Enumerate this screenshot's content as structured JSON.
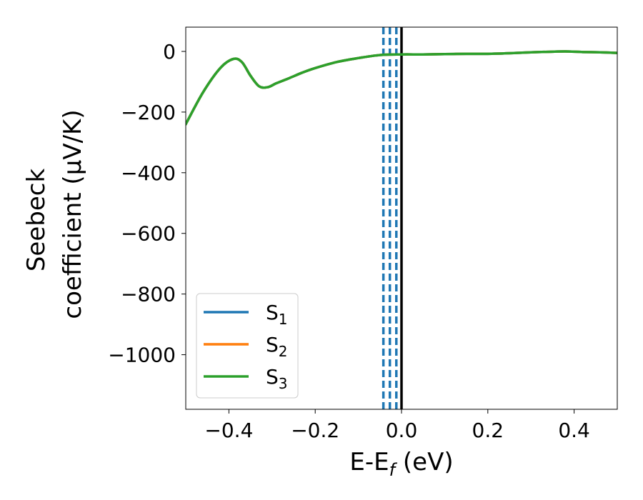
{
  "chart_data": {
    "type": "line",
    "xlabel": "E-E",
    "xlabel_sub": "f",
    "xlabel_unit": " (eV)",
    "ylabel_line1": "Seebeck",
    "ylabel_line2": "coefficient  (μV/K)",
    "xlim": [
      -0.5,
      0.5
    ],
    "ylim": [
      -1180,
      80
    ],
    "xticks": [
      -0.4,
      -0.2,
      0.0,
      0.2,
      0.4
    ],
    "xtick_labels": [
      "−0.4",
      "−0.2",
      "0.0",
      "0.2",
      "0.4"
    ],
    "yticks": [
      0,
      -200,
      -400,
      -600,
      -800,
      -1000
    ],
    "ytick_labels": [
      "0",
      "−200",
      "−400",
      "−600",
      "−800",
      "−1000"
    ],
    "grid": false,
    "legend_position": "bottom-left",
    "legend": [
      {
        "label": "S",
        "sub": "1",
        "color": "#1f77b4"
      },
      {
        "label": "S",
        "sub": "2",
        "color": "#ff7f0e"
      },
      {
        "label": "S",
        "sub": "3",
        "color": "#2ca02c"
      }
    ],
    "series": [
      {
        "name": "S1",
        "color": "#1f77b4",
        "x": [
          -0.5,
          -0.46,
          -0.42,
          -0.39,
          -0.37,
          -0.35,
          -0.33,
          -0.31,
          -0.29,
          -0.26,
          -0.23,
          -0.2,
          -0.15,
          -0.1,
          -0.05,
          0.0,
          0.05,
          0.1,
          0.15,
          0.2,
          0.25,
          0.3,
          0.35,
          0.38,
          0.42,
          0.46,
          0.5
        ],
        "y": [
          -240,
          -135,
          -55,
          -25,
          -35,
          -80,
          -115,
          -118,
          -105,
          -88,
          -70,
          -55,
          -35,
          -22,
          -12,
          -10,
          -10,
          -9,
          -8,
          -8,
          -6,
          -3,
          -1,
          0,
          -2,
          -3,
          -5
        ]
      },
      {
        "name": "S2",
        "color": "#ff7f0e",
        "x": [
          -0.5,
          -0.46,
          -0.42,
          -0.39,
          -0.37,
          -0.35,
          -0.33,
          -0.31,
          -0.29,
          -0.26,
          -0.23,
          -0.2,
          -0.15,
          -0.1,
          -0.05,
          0.0,
          0.05,
          0.1,
          0.15,
          0.2,
          0.25,
          0.3,
          0.35,
          0.38,
          0.42,
          0.46,
          0.5
        ],
        "y": [
          -240,
          -135,
          -55,
          -25,
          -35,
          -80,
          -115,
          -118,
          -105,
          -88,
          -70,
          -55,
          -35,
          -22,
          -12,
          -10,
          -10,
          -9,
          -8,
          -8,
          -6,
          -3,
          -1,
          0,
          -2,
          -3,
          -5
        ]
      },
      {
        "name": "S3",
        "color": "#2ca02c",
        "x": [
          -0.5,
          -0.46,
          -0.42,
          -0.39,
          -0.37,
          -0.35,
          -0.33,
          -0.31,
          -0.29,
          -0.26,
          -0.23,
          -0.2,
          -0.15,
          -0.1,
          -0.05,
          0.0,
          0.05,
          0.1,
          0.15,
          0.2,
          0.25,
          0.3,
          0.35,
          0.38,
          0.42,
          0.46,
          0.5
        ],
        "y": [
          -240,
          -135,
          -55,
          -25,
          -35,
          -80,
          -115,
          -118,
          -105,
          -88,
          -70,
          -55,
          -35,
          -22,
          -12,
          -10,
          -10,
          -9,
          -8,
          -8,
          -6,
          -3,
          -1,
          0,
          -2,
          -3,
          -5
        ]
      }
    ],
    "vlines": [
      {
        "x": -0.042,
        "style": "dashed",
        "color": "#1f77b4"
      },
      {
        "x": -0.027,
        "style": "dashed",
        "color": "#1f77b4"
      },
      {
        "x": -0.012,
        "style": "dashed",
        "color": "#1f77b4"
      },
      {
        "x": 0.0,
        "style": "solid",
        "color": "#000000"
      }
    ]
  }
}
